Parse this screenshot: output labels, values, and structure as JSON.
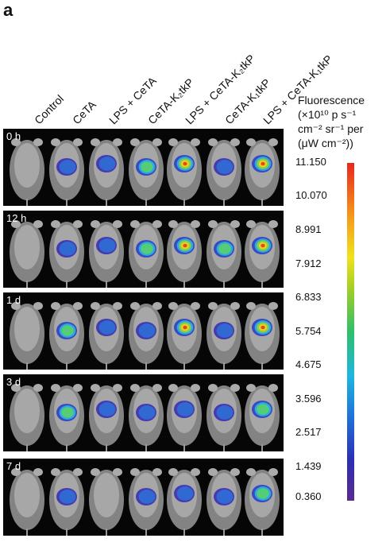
{
  "panel_letter": "a",
  "columns": [
    "Control",
    "CeTA",
    "LPS + CeTA",
    "CeTA-K₂tkP",
    "LPS + CeTA-K₂tkP",
    "CeTA-K₁tkP",
    "LPS + CeTA-K₁tkP"
  ],
  "rows": [
    "0 h",
    "12 h",
    "1 d",
    "3 d",
    "7 d"
  ],
  "legend": {
    "line1": "Fluorescence",
    "line2": "(×10¹⁰ p s⁻¹",
    "line3": "cm⁻² sr⁻¹ per",
    "line4": "(μW cm⁻²))"
  },
  "scale_ticks": [
    "11.150",
    "10.070",
    "8.991",
    "7.912",
    "6.833",
    "5.754",
    "4.675",
    "3.596",
    "2.517",
    "1.439",
    "0.360"
  ],
  "colors": {
    "scale_max": "#e8261e",
    "scale_min": "#5b2a8e",
    "background": "#060606"
  }
}
